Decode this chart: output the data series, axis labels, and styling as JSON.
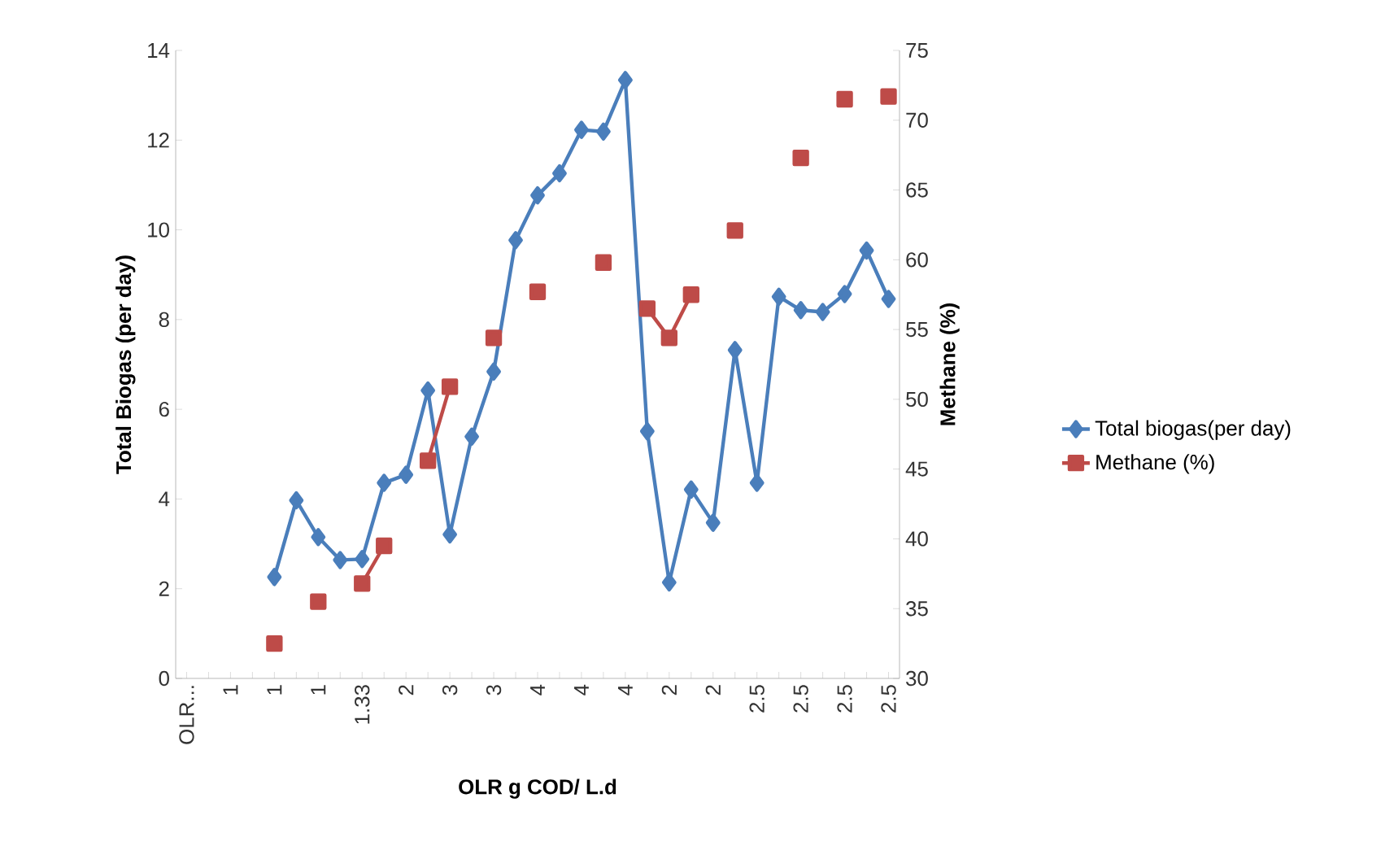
{
  "chart_data": {
    "type": "line",
    "categories": [
      "OLR...",
      null,
      "1",
      null,
      "1",
      null,
      "1",
      null,
      "1.33",
      null,
      "2",
      null,
      "3",
      null,
      "3",
      null,
      "4",
      null,
      "4",
      null,
      "4",
      null,
      "2",
      null,
      "2",
      null,
      "2.5",
      null,
      "2.5",
      null,
      "2.5",
      null,
      "2.5"
    ],
    "series": [
      {
        "name": "Total biogas(per day)",
        "color": "#4a7ebb",
        "marker": "diamond",
        "axis": "y",
        "values": [
          null,
          null,
          null,
          null,
          2.26,
          3.97,
          3.15,
          2.64,
          2.66,
          4.36,
          4.54,
          6.42,
          3.21,
          5.39,
          6.84,
          9.77,
          10.77,
          11.26,
          12.23,
          12.19,
          13.34,
          5.51,
          2.14,
          4.21,
          3.47,
          7.32,
          4.36,
          8.51,
          8.21,
          8.17,
          8.57,
          9.54,
          8.46
        ]
      },
      {
        "name": "Methane (%)",
        "color": "#be4b48",
        "marker": "square",
        "axis": "y2",
        "values": [
          null,
          null,
          null,
          null,
          32.5,
          null,
          35.5,
          null,
          36.8,
          39.5,
          null,
          45.6,
          50.9,
          null,
          54.4,
          null,
          57.7,
          null,
          null,
          59.8,
          null,
          56.5,
          54.4,
          57.5,
          null,
          62.1,
          null,
          null,
          67.3,
          null,
          71.5,
          null,
          71.7
        ]
      }
    ],
    "xlabel": "OLR g COD/ L.d",
    "ylabel": "Total Biogas (per day)",
    "y2label": "Methane (%)",
    "ylim": [
      0,
      14
    ],
    "yticks": [
      0,
      2,
      4,
      6,
      8,
      10,
      12,
      14
    ],
    "y2lim": [
      30,
      75
    ],
    "y2ticks": [
      30,
      35,
      40,
      45,
      50,
      55,
      60,
      65,
      70,
      75
    ],
    "legend": "right"
  }
}
